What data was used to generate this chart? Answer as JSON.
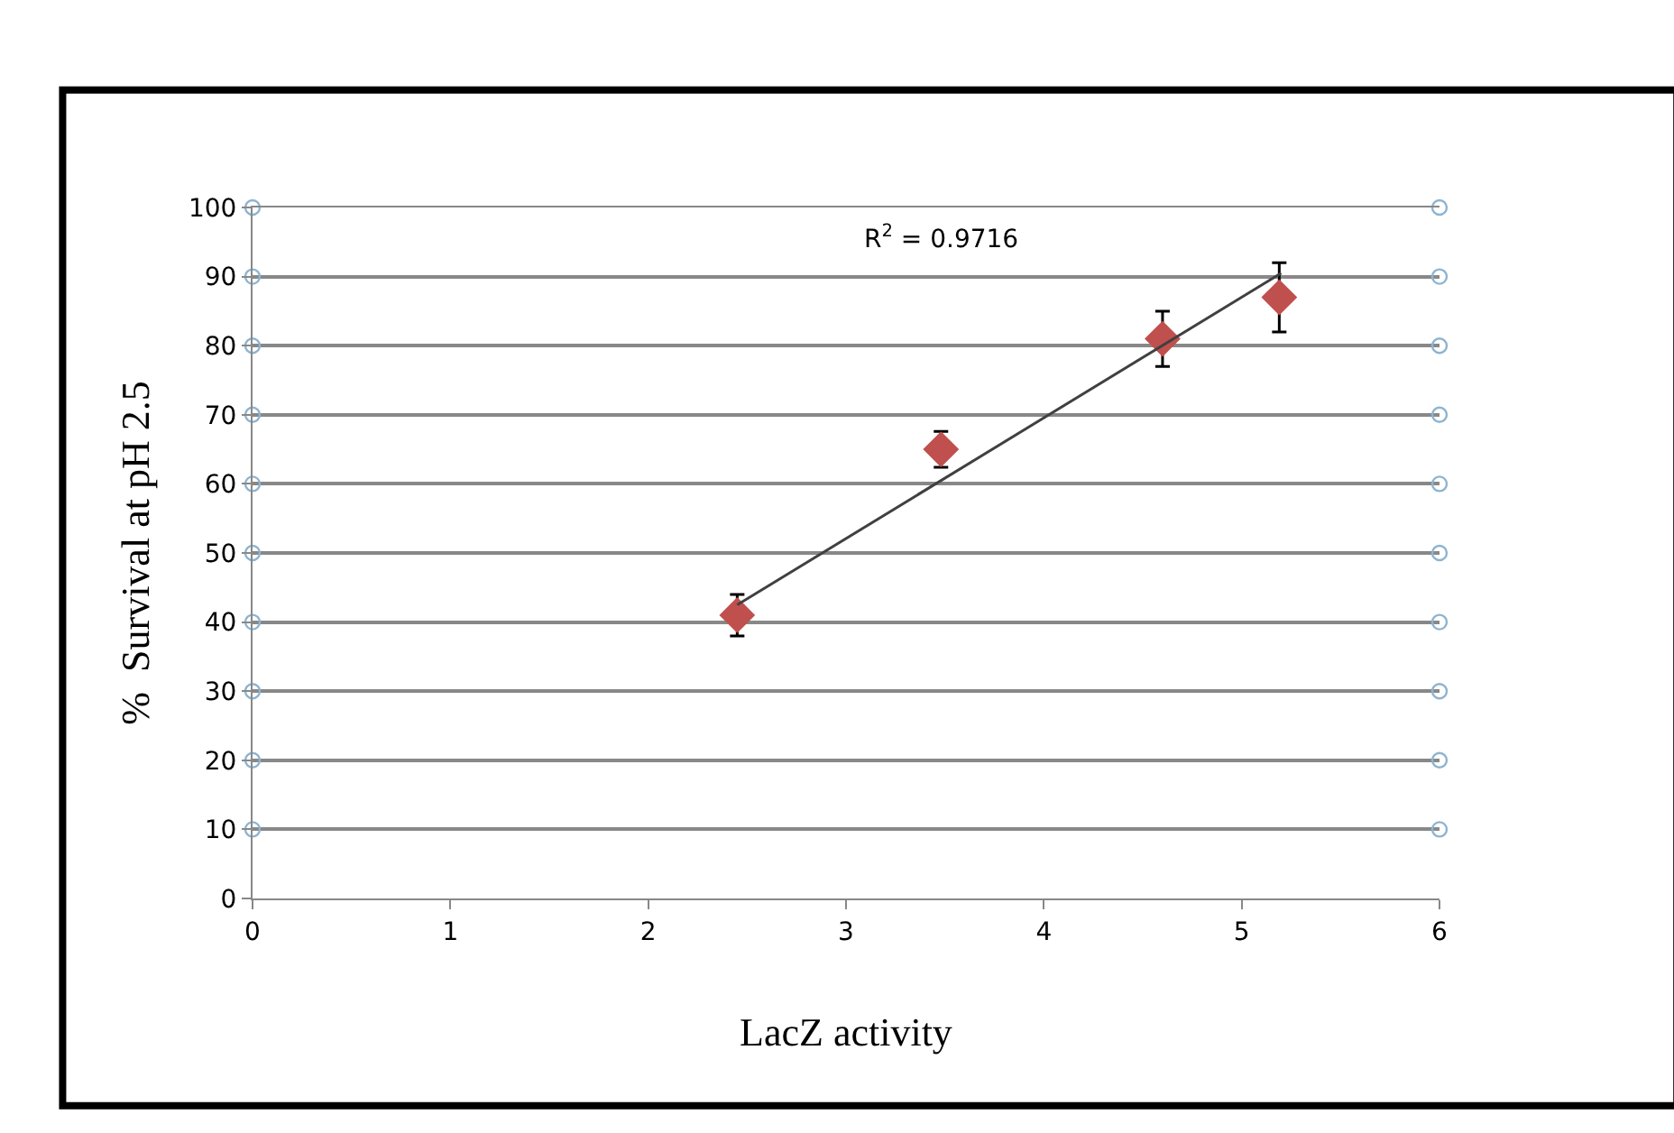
{
  "chart_data": {
    "type": "scatter",
    "xlabel": "LacZ activity",
    "ylabel": "%  Survival at pH 2.5",
    "xlim": [
      0,
      6
    ],
    "xticks": [
      0,
      1,
      2,
      3,
      4,
      5,
      6
    ],
    "ylim": [
      0,
      100
    ],
    "yticks": [
      0,
      10,
      20,
      30,
      40,
      50,
      60,
      70,
      80,
      90,
      100
    ],
    "grid": "y",
    "annotations": [
      "R$^{2}$ = 0.9716"
    ],
    "series": [
      {
        "marker": "diamond",
        "color": "#c0504d",
        "x": [
          2.45,
          3.48,
          4.6,
          5.19
        ],
        "values": [
          41,
          65,
          81,
          87
        ],
        "errors": [
          3,
          2.6,
          4,
          5
        ]
      },
      {
        "type": "line",
        "marker": "none",
        "color": "#404040",
        "x": [
          2.45,
          5.2
        ],
        "values": [
          42.5,
          90.5
        ]
      },
      {
        "marker": "circle",
        "color": "#8eb4d0",
        "x": [
          0,
          0,
          0,
          0,
          0,
          0,
          0,
          0,
          0,
          0,
          6,
          6,
          6,
          6,
          6,
          6,
          6,
          6,
          6,
          6
        ],
        "values": [
          10,
          20,
          30,
          40,
          50,
          60,
          70,
          80,
          90,
          100,
          10,
          20,
          30,
          40,
          50,
          60,
          70,
          80,
          90,
          100
        ]
      }
    ]
  }
}
